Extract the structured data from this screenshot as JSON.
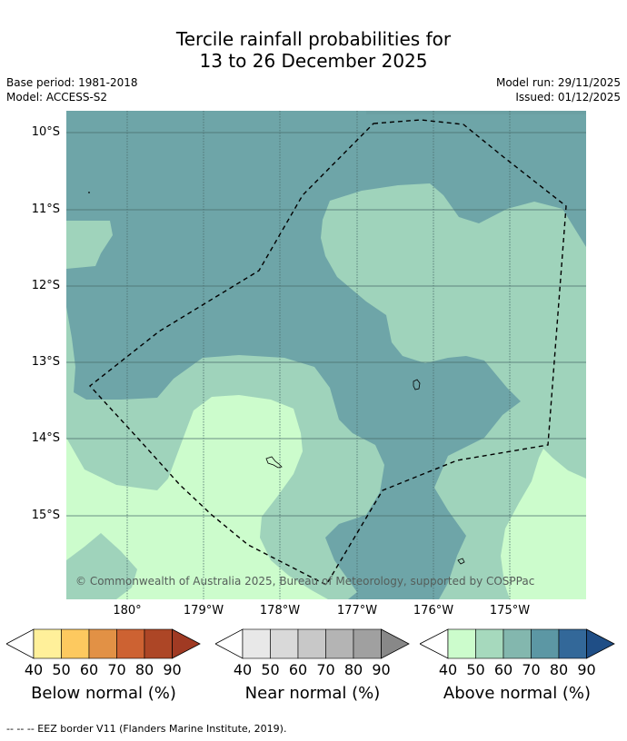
{
  "title": {
    "line1": "Tercile rainfall probabilities for",
    "line2": "13 to 26 December 2025"
  },
  "meta": {
    "base_period": "Base period: 1981-2018",
    "model": "Model: ACCESS-S2",
    "model_run": "Model run: 29/11/2025",
    "issued": "Issued: 01/12/2025"
  },
  "map": {
    "lat_labels": [
      "10°S",
      "11°S",
      "12°S",
      "13°S",
      "14°S",
      "15°S"
    ],
    "lon_labels": [
      "180°",
      "179°W",
      "178°W",
      "177°W",
      "176°W",
      "175°W"
    ],
    "credit": "© Commonwealth of Australia 2025, Bureau of Meteorology, supported by COSPPac",
    "colors": {
      "above_40_50": "#ccfccc",
      "above_50_60": "#9fd3bb",
      "above_60_70": "#6ea5a8",
      "border": "#000000"
    }
  },
  "colorbars": [
    {
      "label": "Below normal (%)",
      "ticks": [
        "40",
        "50",
        "60",
        "70",
        "80",
        "90"
      ],
      "colors": [
        "#fff09a",
        "#fdc95f",
        "#e29145",
        "#cd6232",
        "#ad4626",
        "#a03a23"
      ]
    },
    {
      "label": "Near normal (%)",
      "ticks": [
        "40",
        "50",
        "60",
        "70",
        "80",
        "90"
      ],
      "colors": [
        "#e8e8e8",
        "#d9d9d9",
        "#c8c8c8",
        "#b4b4b4",
        "#a0a0a0",
        "#888888"
      ]
    },
    {
      "label": "Above normal (%)",
      "ticks": [
        "40",
        "50",
        "60",
        "70",
        "80",
        "90"
      ],
      "colors": [
        "#ccfccc",
        "#a6d9bd",
        "#83b7ae",
        "#5c97a4",
        "#336899",
        "#1f4e86"
      ]
    }
  ],
  "footnote": "--  --  -- EEZ border V11 (Flanders Marine Institute, 2019)."
}
